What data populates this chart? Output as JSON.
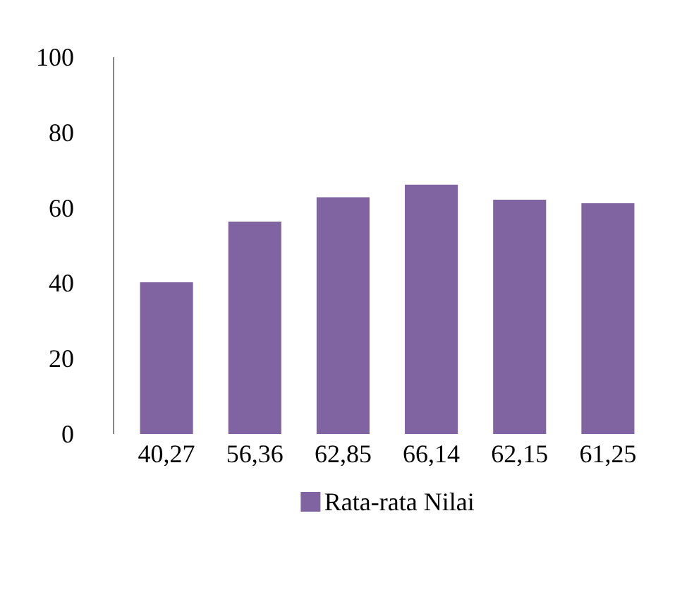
{
  "chart_data": {
    "type": "bar",
    "categories": [
      "40,27",
      "56,36",
      "62,85",
      "66,14",
      "62,15",
      "61,25"
    ],
    "series": [
      {
        "name": "Rata-rata Nilai",
        "color": "#8064a2",
        "values": [
          40.27,
          56.36,
          62.85,
          66.14,
          62.15,
          61.25
        ]
      }
    ],
    "ylim": [
      0,
      100
    ],
    "yticks": [
      0,
      20,
      40,
      60,
      80,
      100
    ],
    "grid": false,
    "legend": "bottom"
  }
}
